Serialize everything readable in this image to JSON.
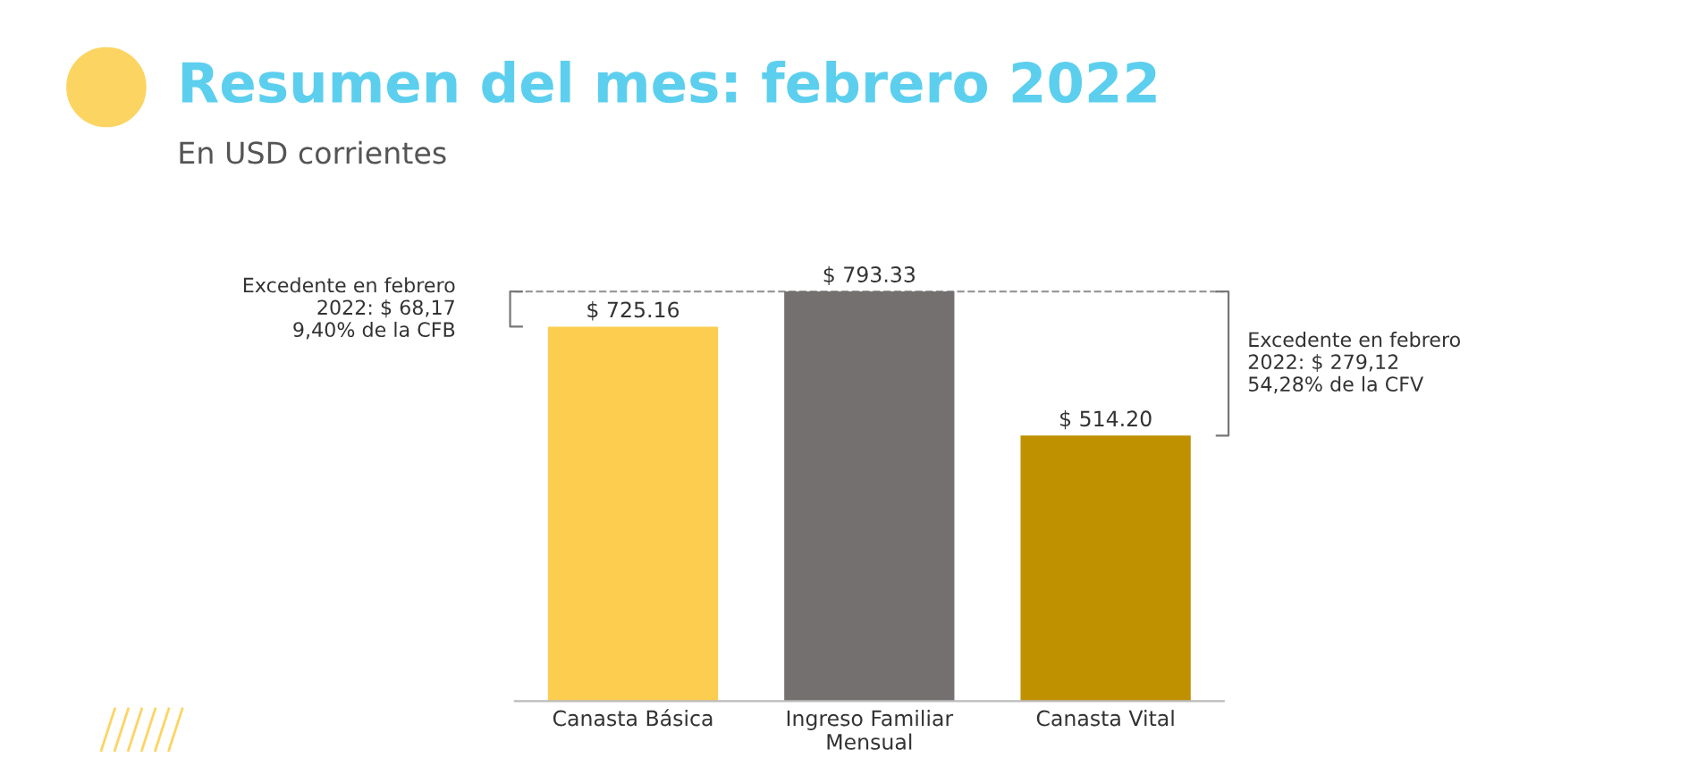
{
  "chart_data": {
    "type": "bar",
    "title": "Resumen del mes: febrero 2022",
    "subtitle": "En USD corrientes",
    "categories": [
      "Canasta Básica",
      "Ingreso Familiar\nMensual",
      "Canasta Vital"
    ],
    "values": [
      725.16,
      793.33,
      514.2
    ],
    "colors": [
      "#fccd4f",
      "#747070",
      "#bf9000"
    ],
    "value_labels": [
      "$ 725.16",
      "$ 793.33",
      "$ 514.20"
    ],
    "ylim": [
      0,
      800
    ],
    "tick_labels": "x",
    "grid": false,
    "ref_lines": [
      {
        "axis": "y",
        "value": 793.33,
        "color": "#999999",
        "line_style": "dashed"
      }
    ],
    "annotations": [
      "Excedente en febrero\n2022: $ 68,17\n9,40% de la CFB",
      "Excedente en febrero\n2022: $ 279,12\n54,28% de la CFV"
    ]
  }
}
